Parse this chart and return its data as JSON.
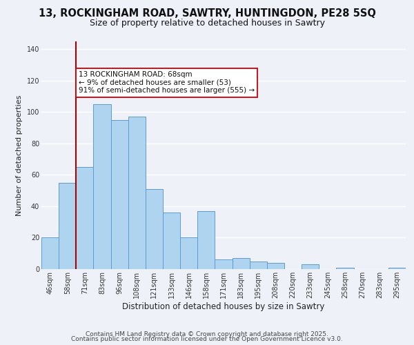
{
  "title": "13, ROCKINGHAM ROAD, SAWTRY, HUNTINGDON, PE28 5SQ",
  "subtitle": "Size of property relative to detached houses in Sawtry",
  "xlabel": "Distribution of detached houses by size in Sawtry",
  "ylabel": "Number of detached properties",
  "bar_labels": [
    "46sqm",
    "58sqm",
    "71sqm",
    "83sqm",
    "96sqm",
    "108sqm",
    "121sqm",
    "133sqm",
    "146sqm",
    "158sqm",
    "171sqm",
    "183sqm",
    "195sqm",
    "208sqm",
    "220sqm",
    "233sqm",
    "245sqm",
    "258sqm",
    "270sqm",
    "283sqm",
    "295sqm"
  ],
  "bar_values": [
    20,
    55,
    65,
    105,
    95,
    97,
    51,
    36,
    20,
    37,
    6,
    7,
    5,
    4,
    0,
    3,
    0,
    1,
    0,
    0,
    1
  ],
  "bar_color": "#aed4f0",
  "bar_edge_color": "#5b9bd5",
  "vline_index": 2,
  "vline_color": "#aa0000",
  "annotation_title": "13 ROCKINGHAM ROAD: 68sqm",
  "annotation_line1": "← 9% of detached houses are smaller (53)",
  "annotation_line2": "91% of semi-detached houses are larger (555) →",
  "annotation_box_color": "#ffffff",
  "annotation_box_edge": "#cc0000",
  "ylim": [
    0,
    145
  ],
  "yticks": [
    0,
    20,
    40,
    60,
    80,
    100,
    120,
    140
  ],
  "footer1": "Contains HM Land Registry data © Crown copyright and database right 2025.",
  "footer2": "Contains public sector information licensed under the Open Government Licence v3.0.",
  "bg_color": "#eef2f8",
  "grid_color": "#ffffff",
  "title_fontsize": 10.5,
  "subtitle_fontsize": 9,
  "xlabel_fontsize": 8.5,
  "ylabel_fontsize": 8,
  "tick_fontsize": 7,
  "annotation_fontsize": 7.5,
  "footer_fontsize": 6.5
}
